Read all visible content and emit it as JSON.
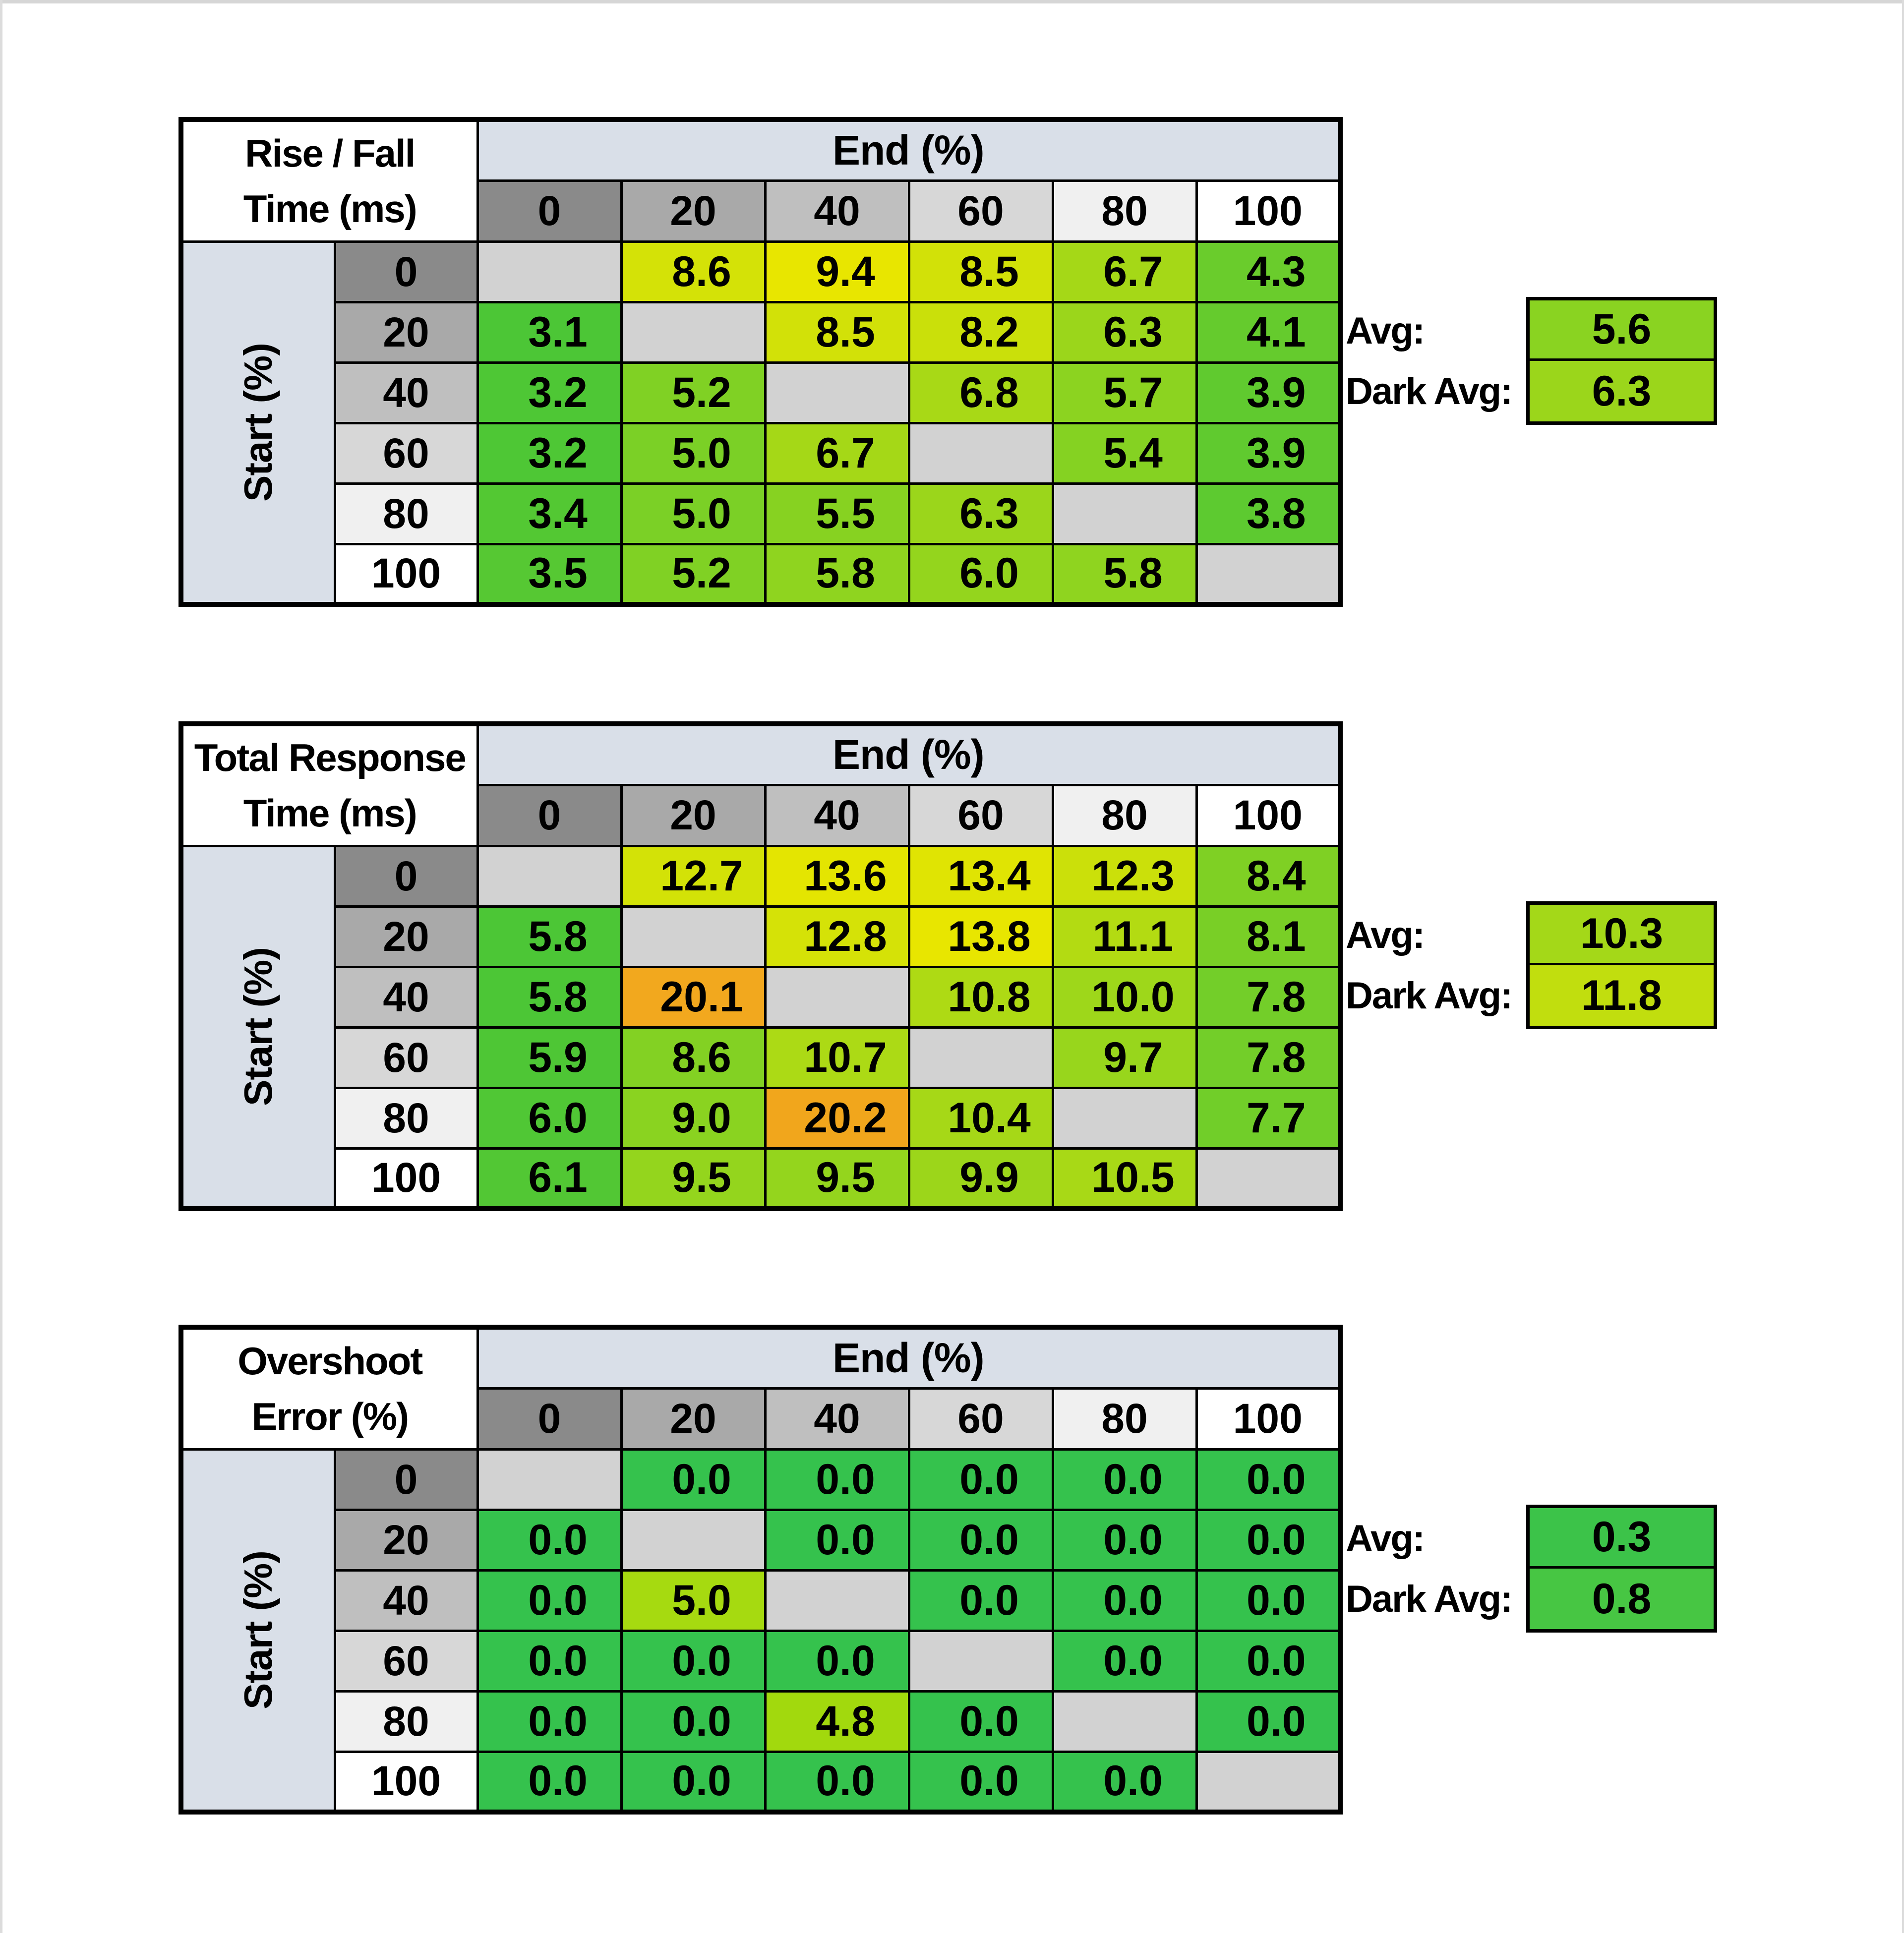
{
  "page": {
    "background": "#ffffff",
    "frame_color": "#d6d6d6"
  },
  "colors": {
    "grid_line": "#000000",
    "band_bg": "#d9dfe8",
    "corner_bg": "#ffffff",
    "diagonal_bg": "#d2d2d2",
    "header_grays": [
      "#8a8a8a",
      "#a9a9a9",
      "#bfbfbf",
      "#d7d7d7",
      "#f0f0f0",
      "#ffffff"
    ]
  },
  "chart_data": [
    {
      "id": "rise-fall-time",
      "type": "heatmap",
      "title_line1": "Rise / Fall",
      "title_line2": "Time (ms)",
      "x_label": "End (%)",
      "y_label": "Start (%)",
      "x_categories": [
        "0",
        "20",
        "40",
        "60",
        "80",
        "100"
      ],
      "y_categories": [
        "0",
        "20",
        "40",
        "60",
        "80",
        "100"
      ],
      "rows": [
        {
          "start": "0",
          "cells": [
            null,
            {
              "v": "8.6",
              "c": "#d4e207"
            },
            {
              "v": "9.4",
              "c": "#e8e600"
            },
            {
              "v": "8.5",
              "c": "#d2e108"
            },
            {
              "v": "6.7",
              "c": "#a5d817"
            },
            {
              "v": "4.3",
              "c": "#6acc2c"
            }
          ]
        },
        {
          "start": "20",
          "cells": [
            {
              "v": "3.1",
              "c": "#4cc636"
            },
            null,
            {
              "v": "8.5",
              "c": "#d2e108"
            },
            {
              "v": "8.2",
              "c": "#cae00a"
            },
            {
              "v": "6.3",
              "c": "#9bd61b"
            },
            {
              "v": "4.1",
              "c": "#65cb2d"
            }
          ]
        },
        {
          "start": "40",
          "cells": [
            {
              "v": "3.2",
              "c": "#4ec735"
            },
            {
              "v": "5.2",
              "c": "#80d124"
            },
            null,
            {
              "v": "6.8",
              "c": "#a8d916"
            },
            {
              "v": "5.7",
              "c": "#8cd320"
            },
            {
              "v": "3.9",
              "c": "#60ca2f"
            }
          ]
        },
        {
          "start": "60",
          "cells": [
            {
              "v": "3.2",
              "c": "#4ec735"
            },
            {
              "v": "5.0",
              "c": "#7bd026"
            },
            {
              "v": "6.7",
              "c": "#a5d817"
            },
            null,
            {
              "v": "5.4",
              "c": "#85d222"
            },
            {
              "v": "3.9",
              "c": "#60ca2f"
            }
          ]
        },
        {
          "start": "80",
          "cells": [
            {
              "v": "3.4",
              "c": "#53c833"
            },
            {
              "v": "5.0",
              "c": "#7bd026"
            },
            {
              "v": "5.5",
              "c": "#87d221"
            },
            {
              "v": "6.3",
              "c": "#9bd61b"
            },
            null,
            {
              "v": "3.8",
              "c": "#5dca30"
            }
          ]
        },
        {
          "start": "100",
          "cells": [
            {
              "v": "3.5",
              "c": "#56c833"
            },
            {
              "v": "5.2",
              "c": "#80d124"
            },
            {
              "v": "5.8",
              "c": "#8fd41f"
            },
            {
              "v": "6.0",
              "c": "#94d51d"
            },
            {
              "v": "5.8",
              "c": "#8fd41f"
            },
            null
          ]
        }
      ],
      "avg_label": "Avg:",
      "dark_avg_label": "Dark Avg:",
      "avg": {
        "v": "5.6",
        "c": "#8ad321"
      },
      "dark_avg": {
        "v": "6.3",
        "c": "#9bd61b"
      }
    },
    {
      "id": "total-response-time",
      "type": "heatmap",
      "title_line1": "Total Response",
      "title_line2": "Time (ms)",
      "x_label": "End (%)",
      "y_label": "Start (%)",
      "x_categories": [
        "0",
        "20",
        "40",
        "60",
        "80",
        "100"
      ],
      "y_categories": [
        "0",
        "20",
        "40",
        "60",
        "80",
        "100"
      ],
      "rows": [
        {
          "start": "0",
          "cells": [
            null,
            {
              "v": "12.7",
              "c": "#d3e207"
            },
            {
              "v": "13.6",
              "c": "#e4e501"
            },
            {
              "v": "13.4",
              "c": "#e0e403"
            },
            {
              "v": "12.3",
              "c": "#cbe00a"
            },
            {
              "v": "8.4",
              "c": "#7fd024"
            }
          ]
        },
        {
          "start": "20",
          "cells": [
            {
              "v": "5.8",
              "c": "#4cc636"
            },
            null,
            {
              "v": "12.8",
              "c": "#d5e207"
            },
            {
              "v": "13.8",
              "c": "#e8e600"
            },
            {
              "v": "11.1",
              "c": "#b3db12"
            },
            {
              "v": "8.1",
              "c": "#79cf26"
            }
          ]
        },
        {
          "start": "40",
          "cells": [
            {
              "v": "5.8",
              "c": "#4cc636"
            },
            {
              "v": "20.1",
              "c": "#f2a81e"
            },
            null,
            {
              "v": "10.8",
              "c": "#aeda14"
            },
            {
              "v": "10.0",
              "c": "#9ed71a"
            },
            {
              "v": "7.8",
              "c": "#73ce29"
            }
          ]
        },
        {
          "start": "60",
          "cells": [
            {
              "v": "5.9",
              "c": "#4ec635"
            },
            {
              "v": "8.6",
              "c": "#83d123"
            },
            {
              "v": "10.7",
              "c": "#acda15"
            },
            null,
            {
              "v": "9.7",
              "c": "#98d61c"
            },
            {
              "v": "7.8",
              "c": "#73ce29"
            }
          ]
        },
        {
          "start": "80",
          "cells": [
            {
              "v": "6.0",
              "c": "#50c735"
            },
            {
              "v": "9.0",
              "c": "#8ad320"
            },
            {
              "v": "20.2",
              "c": "#f1a61c"
            },
            {
              "v": "10.4",
              "c": "#a6d817"
            },
            null,
            {
              "v": "7.7",
              "c": "#71ce29"
            }
          ]
        },
        {
          "start": "100",
          "cells": [
            {
              "v": "6.1",
              "c": "#52c734"
            },
            {
              "v": "9.5",
              "c": "#94d51d"
            },
            {
              "v": "9.5",
              "c": "#94d51d"
            },
            {
              "v": "9.9",
              "c": "#9cd61a"
            },
            {
              "v": "10.5",
              "c": "#a8d916"
            },
            null
          ]
        }
      ],
      "avg_label": "Avg:",
      "dark_avg_label": "Dark Avg:",
      "avg": {
        "v": "10.3",
        "c": "#a4d818"
      },
      "dark_avg": {
        "v": "11.8",
        "c": "#c1de0e"
      }
    },
    {
      "id": "overshoot-error",
      "type": "heatmap",
      "title_line1": "Overshoot",
      "title_line2": "Error (%)",
      "x_label": "End (%)",
      "y_label": "Start (%)",
      "x_categories": [
        "0",
        "20",
        "40",
        "60",
        "80",
        "100"
      ],
      "y_categories": [
        "0",
        "20",
        "40",
        "60",
        "80",
        "100"
      ],
      "rows": [
        {
          "start": "0",
          "cells": [
            null,
            {
              "v": "0.0",
              "c": "#35c24d"
            },
            {
              "v": "0.0",
              "c": "#35c24d"
            },
            {
              "v": "0.0",
              "c": "#35c24d"
            },
            {
              "v": "0.0",
              "c": "#35c24d"
            },
            {
              "v": "0.0",
              "c": "#35c24d"
            }
          ]
        },
        {
          "start": "20",
          "cells": [
            {
              "v": "0.0",
              "c": "#35c24d"
            },
            null,
            {
              "v": "0.0",
              "c": "#35c24d"
            },
            {
              "v": "0.0",
              "c": "#35c24d"
            },
            {
              "v": "0.0",
              "c": "#35c24d"
            },
            {
              "v": "0.0",
              "c": "#35c24d"
            }
          ]
        },
        {
          "start": "40",
          "cells": [
            {
              "v": "0.0",
              "c": "#35c24d"
            },
            {
              "v": "5.0",
              "c": "#a6da10"
            },
            null,
            {
              "v": "0.0",
              "c": "#35c24d"
            },
            {
              "v": "0.0",
              "c": "#35c24d"
            },
            {
              "v": "0.0",
              "c": "#35c24d"
            }
          ]
        },
        {
          "start": "60",
          "cells": [
            {
              "v": "0.0",
              "c": "#35c24d"
            },
            {
              "v": "0.0",
              "c": "#35c24d"
            },
            {
              "v": "0.0",
              "c": "#35c24d"
            },
            null,
            {
              "v": "0.0",
              "c": "#35c24d"
            },
            {
              "v": "0.0",
              "c": "#35c24d"
            }
          ]
        },
        {
          "start": "80",
          "cells": [
            {
              "v": "0.0",
              "c": "#35c24d"
            },
            {
              "v": "0.0",
              "c": "#35c24d"
            },
            {
              "v": "4.8",
              "c": "#a2d90d"
            },
            {
              "v": "0.0",
              "c": "#35c24d"
            },
            null,
            {
              "v": "0.0",
              "c": "#35c24d"
            }
          ]
        },
        {
          "start": "100",
          "cells": [
            {
              "v": "0.0",
              "c": "#35c24d"
            },
            {
              "v": "0.0",
              "c": "#35c24d"
            },
            {
              "v": "0.0",
              "c": "#35c24d"
            },
            {
              "v": "0.0",
              "c": "#35c24d"
            },
            {
              "v": "0.0",
              "c": "#35c24d"
            },
            null
          ]
        }
      ],
      "avg_label": "Avg:",
      "dark_avg_label": "Dark Avg:",
      "avg": {
        "v": "0.3",
        "c": "#3cc349"
      },
      "dark_avg": {
        "v": "0.8",
        "c": "#47c643"
      }
    }
  ]
}
